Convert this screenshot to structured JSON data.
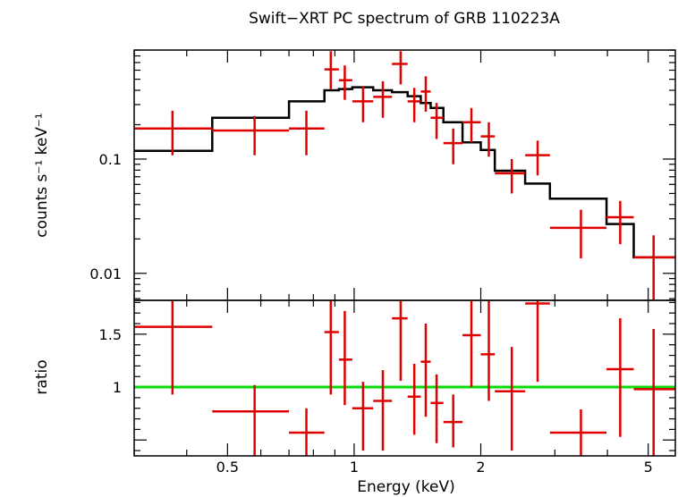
{
  "chart_data": [
    {
      "type": "scatter",
      "panel": "spectrum",
      "title": "Swift−XRT PC spectrum of GRB 110223A",
      "xlabel": "Energy (keV)",
      "ylabel": "counts s⁻¹ keV⁻¹",
      "xscale": "log",
      "yscale": "log",
      "xlim": [
        0.3,
        5.8
      ],
      "ylim": [
        0.0058,
        0.9
      ],
      "x_ticks": [
        {
          "v": 0.5,
          "label": "0.5"
        },
        {
          "v": 1,
          "label": "1"
        },
        {
          "v": 2,
          "label": "2"
        },
        {
          "v": 5,
          "label": "5"
        }
      ],
      "y_ticks": [
        {
          "v": 0.1,
          "label": "0.1"
        },
        {
          "v": 0.01,
          "label": "0.01"
        }
      ],
      "series": [
        {
          "color": "#e00000",
          "points": [
            {
              "x": 0.37,
              "xlo": 0.3,
              "xhi": 0.46,
              "y": 0.185,
              "ylo": 0.108,
              "yhi": 0.265
            },
            {
              "x": 0.58,
              "xlo": 0.46,
              "xhi": 0.7,
              "y": 0.178,
              "ylo": 0.108,
              "yhi": 0.238
            },
            {
              "x": 0.77,
              "xlo": 0.7,
              "xhi": 0.85,
              "y": 0.185,
              "ylo": 0.108,
              "yhi": 0.265
            },
            {
              "x": 0.88,
              "xlo": 0.85,
              "xhi": 0.92,
              "y": 0.61,
              "ylo": 0.41,
              "yhi": 0.88
            },
            {
              "x": 0.95,
              "xlo": 0.92,
              "xhi": 0.99,
              "y": 0.49,
              "ylo": 0.33,
              "yhi": 0.66
            },
            {
              "x": 1.05,
              "xlo": 0.99,
              "xhi": 1.11,
              "y": 0.32,
              "ylo": 0.21,
              "yhi": 0.43
            },
            {
              "x": 1.17,
              "xlo": 1.11,
              "xhi": 1.23,
              "y": 0.35,
              "ylo": 0.23,
              "yhi": 0.48
            },
            {
              "x": 1.29,
              "xlo": 1.23,
              "xhi": 1.34,
              "y": 0.68,
              "ylo": 0.45,
              "yhi": 0.88
            },
            {
              "x": 1.39,
              "xlo": 1.34,
              "xhi": 1.44,
              "y": 0.32,
              "ylo": 0.21,
              "yhi": 0.42
            },
            {
              "x": 1.48,
              "xlo": 1.44,
              "xhi": 1.52,
              "y": 0.39,
              "ylo": 0.26,
              "yhi": 0.53
            },
            {
              "x": 1.57,
              "xlo": 1.52,
              "xhi": 1.63,
              "y": 0.23,
              "ylo": 0.15,
              "yhi": 0.31
            },
            {
              "x": 1.72,
              "xlo": 1.63,
              "xhi": 1.81,
              "y": 0.138,
              "ylo": 0.09,
              "yhi": 0.185
            },
            {
              "x": 1.9,
              "xlo": 1.81,
              "xhi": 2.0,
              "y": 0.21,
              "ylo": 0.14,
              "yhi": 0.28
            },
            {
              "x": 2.09,
              "xlo": 2.0,
              "xhi": 2.16,
              "y": 0.158,
              "ylo": 0.105,
              "yhi": 0.21
            },
            {
              "x": 2.37,
              "xlo": 2.16,
              "xhi": 2.55,
              "y": 0.075,
              "ylo": 0.05,
              "yhi": 0.1
            },
            {
              "x": 2.73,
              "xlo": 2.55,
              "xhi": 2.92,
              "y": 0.108,
              "ylo": 0.072,
              "yhi": 0.145
            },
            {
              "x": 3.46,
              "xlo": 2.92,
              "xhi": 3.98,
              "y": 0.025,
              "ylo": 0.0135,
              "yhi": 0.036
            },
            {
              "x": 4.29,
              "xlo": 3.98,
              "xhi": 4.62,
              "y": 0.031,
              "ylo": 0.018,
              "yhi": 0.043
            },
            {
              "x": 5.15,
              "xlo": 4.62,
              "xhi": 5.8,
              "y": 0.0138,
              "ylo": 0.0058,
              "yhi": 0.0215
            }
          ]
        }
      ],
      "model": {
        "color": "#000000",
        "steps": [
          {
            "xlo": 0.3,
            "xhi": 0.46,
            "y": 0.118
          },
          {
            "xlo": 0.46,
            "xhi": 0.7,
            "y": 0.23
          },
          {
            "xlo": 0.7,
            "xhi": 0.85,
            "y": 0.32
          },
          {
            "xlo": 0.85,
            "xhi": 0.92,
            "y": 0.4
          },
          {
            "xlo": 0.92,
            "xhi": 0.99,
            "y": 0.41
          },
          {
            "xlo": 0.99,
            "xhi": 1.11,
            "y": 0.425
          },
          {
            "xlo": 1.11,
            "xhi": 1.23,
            "y": 0.4
          },
          {
            "xlo": 1.23,
            "xhi": 1.34,
            "y": 0.385
          },
          {
            "xlo": 1.34,
            "xhi": 1.44,
            "y": 0.355
          },
          {
            "xlo": 1.44,
            "xhi": 1.52,
            "y": 0.31
          },
          {
            "xlo": 1.52,
            "xhi": 1.63,
            "y": 0.28
          },
          {
            "xlo": 1.63,
            "xhi": 1.81,
            "y": 0.21
          },
          {
            "xlo": 1.81,
            "xhi": 2.0,
            "y": 0.14
          },
          {
            "xlo": 2.0,
            "xhi": 2.16,
            "y": 0.12
          },
          {
            "xlo": 2.16,
            "xhi": 2.55,
            "y": 0.079
          },
          {
            "xlo": 2.55,
            "xhi": 2.92,
            "y": 0.061
          },
          {
            "xlo": 2.92,
            "xhi": 3.98,
            "y": 0.045
          },
          {
            "xlo": 3.98,
            "xhi": 4.62,
            "y": 0.027
          },
          {
            "xlo": 4.62,
            "xhi": 5.8,
            "y": 0.0138
          }
        ]
      }
    },
    {
      "type": "scatter",
      "panel": "ratio",
      "ylabel": "ratio",
      "xscale": "log",
      "yscale": "linear",
      "xlim": [
        0.3,
        5.8
      ],
      "ylim": [
        0.35,
        1.82
      ],
      "y_ticks": [
        {
          "v": 1.5,
          "label": "1.5"
        },
        {
          "v": 1,
          "label": "1"
        }
      ],
      "reference_line": {
        "y": 1,
        "color": "#00dd00"
      },
      "series": [
        {
          "color": "#e00000",
          "points": [
            {
              "x": 0.37,
              "xlo": 0.3,
              "xhi": 0.46,
              "y": 1.57,
              "ylo": 0.93,
              "yhi": 1.82
            },
            {
              "x": 0.58,
              "xlo": 0.46,
              "xhi": 0.7,
              "y": 0.77,
              "ylo": 0.35,
              "yhi": 1.02
            },
            {
              "x": 0.77,
              "xlo": 0.7,
              "xhi": 0.85,
              "y": 0.57,
              "ylo": 0.35,
              "yhi": 0.8
            },
            {
              "x": 0.88,
              "xlo": 0.85,
              "xhi": 0.92,
              "y": 1.52,
              "ylo": 0.93,
              "yhi": 1.82
            },
            {
              "x": 0.95,
              "xlo": 0.92,
              "xhi": 0.99,
              "y": 1.26,
              "ylo": 0.83,
              "yhi": 1.72
            },
            {
              "x": 1.05,
              "xlo": 0.99,
              "xhi": 1.11,
              "y": 0.8,
              "ylo": 0.4,
              "yhi": 1.05
            },
            {
              "x": 1.17,
              "xlo": 1.11,
              "xhi": 1.23,
              "y": 0.87,
              "ylo": 0.4,
              "yhi": 1.16
            },
            {
              "x": 1.29,
              "xlo": 1.23,
              "xhi": 1.34,
              "y": 1.65,
              "ylo": 1.06,
              "yhi": 1.82
            },
            {
              "x": 1.39,
              "xlo": 1.34,
              "xhi": 1.44,
              "y": 0.91,
              "ylo": 0.55,
              "yhi": 1.22
            },
            {
              "x": 1.48,
              "xlo": 1.44,
              "xhi": 1.52,
              "y": 1.24,
              "ylo": 0.72,
              "yhi": 1.6
            },
            {
              "x": 1.57,
              "xlo": 1.52,
              "xhi": 1.63,
              "y": 0.85,
              "ylo": 0.47,
              "yhi": 1.12
            },
            {
              "x": 1.72,
              "xlo": 1.63,
              "xhi": 1.81,
              "y": 0.67,
              "ylo": 0.43,
              "yhi": 0.93
            },
            {
              "x": 1.9,
              "xlo": 1.81,
              "xhi": 2.0,
              "y": 1.49,
              "ylo": 1.0,
              "yhi": 1.82
            },
            {
              "x": 2.09,
              "xlo": 2.0,
              "xhi": 2.16,
              "y": 1.31,
              "ylo": 0.87,
              "yhi": 1.82
            },
            {
              "x": 2.37,
              "xlo": 2.16,
              "xhi": 2.55,
              "y": 0.96,
              "ylo": 0.4,
              "yhi": 1.38
            },
            {
              "x": 2.73,
              "xlo": 2.55,
              "xhi": 2.92,
              "y": 1.79,
              "ylo": 1.05,
              "yhi": 1.82
            },
            {
              "x": 3.46,
              "xlo": 2.92,
              "xhi": 3.98,
              "y": 0.57,
              "ylo": 0.35,
              "yhi": 0.79
            },
            {
              "x": 4.29,
              "xlo": 3.98,
              "xhi": 4.62,
              "y": 1.17,
              "ylo": 0.53,
              "yhi": 1.65
            },
            {
              "x": 5.15,
              "xlo": 4.62,
              "xhi": 5.8,
              "y": 0.98,
              "ylo": 0.35,
              "yhi": 1.55
            }
          ]
        }
      ]
    }
  ]
}
